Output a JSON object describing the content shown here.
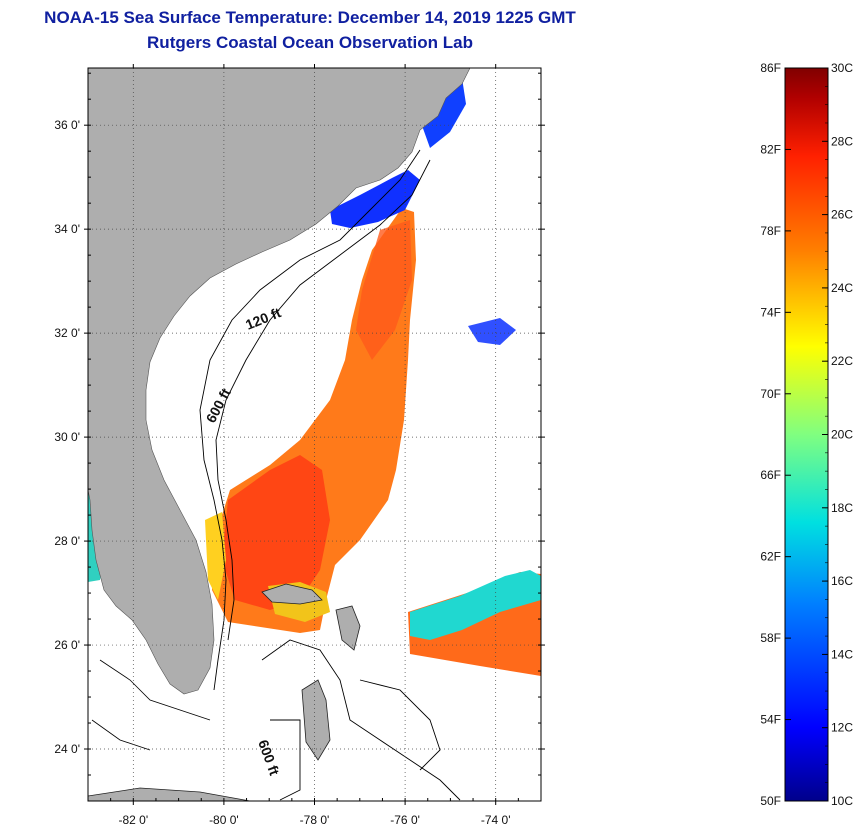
{
  "header": {
    "title": "NOAA-15 Sea Surface Temperature:  December 14, 2019 1225 GMT",
    "subtitle": "Rutgers Coastal Ocean Observation Lab"
  },
  "axes": {
    "lat_ticks": [
      {
        "value": 36,
        "label": "36 0'"
      },
      {
        "value": 34,
        "label": "34 0'"
      },
      {
        "value": 32,
        "label": "32 0'"
      },
      {
        "value": 30,
        "label": "30 0'"
      },
      {
        "value": 28,
        "label": "28 0'"
      },
      {
        "value": 26,
        "label": "26 0'"
      },
      {
        "value": 24,
        "label": "24 0'"
      }
    ],
    "lon_ticks": [
      {
        "value": -82,
        "label": "-82 0'"
      },
      {
        "value": -80,
        "label": "-80 0'"
      },
      {
        "value": -78,
        "label": "-78 0'"
      },
      {
        "value": -76,
        "label": "-76 0'"
      },
      {
        "value": -74,
        "label": "-74 0'"
      }
    ],
    "lat_range": [
      23,
      37.1
    ],
    "lon_range": [
      -83,
      -73
    ],
    "grid": "dotted"
  },
  "contours": [
    {
      "label": "120 ft"
    },
    {
      "label": "600 ft"
    },
    {
      "label": "600 ft"
    }
  ],
  "colorbar": {
    "fahrenheit": [
      "86F",
      "82F",
      "78F",
      "74F",
      "70F",
      "66F",
      "62F",
      "58F",
      "54F",
      "50F"
    ],
    "celsius": [
      "30C",
      "28C",
      "26C",
      "24C",
      "22C",
      "20C",
      "18C",
      "16C",
      "14C",
      "12C",
      "10C"
    ],
    "range_c": [
      10,
      30
    ],
    "colors": [
      "#00008b",
      "#0000ff",
      "#0080ff",
      "#00e0e0",
      "#80ff80",
      "#ffff00",
      "#ff8000",
      "#ff2000",
      "#b00000",
      "#800000"
    ]
  },
  "colors": {
    "land": "#aeaeae",
    "title": "#1020a0",
    "warm": "#ff4a1a",
    "mid": "#ff8c1a",
    "cold": "#1030ff"
  }
}
